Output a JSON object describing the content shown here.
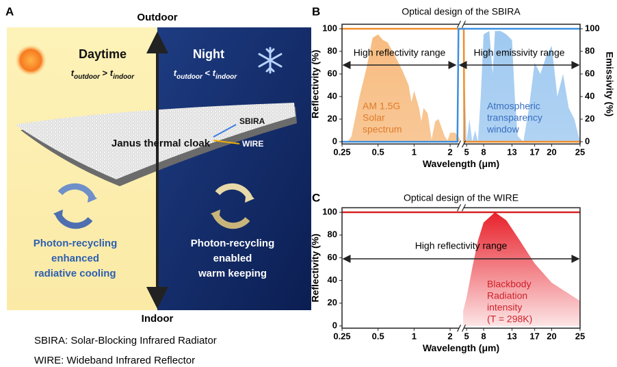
{
  "panel_a": {
    "label": "A",
    "outdoor": "Outdoor",
    "indoor": "Indoor",
    "day_title": "Daytime",
    "night_title": "Night",
    "day_condition": {
      "t1": "t",
      "sub1": "outdoor",
      "op": " > ",
      "t2": "t",
      "sub2": "indoor"
    },
    "night_condition": {
      "t1": "t",
      "sub1": "outdoor",
      "op": " < ",
      "t2": "t",
      "sub2": "indoor"
    },
    "cloak": "Janus thermal cloak",
    "layer_top": "SBIRA",
    "layer_bottom": "WIRE",
    "day_caption": [
      "Photon-recycling",
      "enhanced",
      "radiative cooling"
    ],
    "night_caption": [
      "Photon-recycling",
      "enabled",
      "warm keeping"
    ],
    "footnotes": [
      "SBIRA: Solar-Blocking Infrared Radiator",
      "WIRE: Wideband Infrared Reflector"
    ]
  },
  "chart_data": [
    {
      "type": "line",
      "panel": "B",
      "title": "Optical design of the SBIRA",
      "x_label": "Wavelength (μm)",
      "y_label": "Reflectivity (%)",
      "y2_label": "Emissivity (%)",
      "xscale": [
        "log",
        "linear"
      ],
      "xsegments": [
        [
          0.25,
          2.4
        ],
        [
          4.4,
          25
        ]
      ],
      "xticks": [
        0.25,
        0.5,
        1,
        2,
        5,
        8,
        13,
        17,
        20,
        25
      ],
      "ylim": [
        -2,
        104
      ],
      "yticks": [
        0,
        20,
        40,
        60,
        80,
        100
      ],
      "y2lim": [
        -2,
        104
      ],
      "y2ticks": [
        0,
        20,
        40,
        60,
        80,
        100
      ],
      "series": [
        {
          "style": "area",
          "color": "#f6b06a",
          "x": [
            0.28,
            0.3,
            0.35,
            0.4,
            0.45,
            0.5,
            0.55,
            0.6,
            0.7,
            0.8,
            0.9,
            0.95,
            1.0,
            1.1,
            1.15,
            1.2,
            1.3,
            1.4,
            1.5,
            1.6,
            1.8,
            1.9,
            2.0,
            2.2,
            2.4
          ],
          "values": [
            0,
            5,
            40,
            65,
            92,
            95,
            90,
            88,
            75,
            63,
            50,
            35,
            45,
            30,
            18,
            30,
            25,
            2,
            18,
            20,
            5,
            1,
            8,
            8,
            3
          ]
        },
        {
          "style": "area",
          "color": "#8fc0ee",
          "axis": "y2",
          "x": [
            4.4,
            4.6,
            5,
            5.5,
            6,
            6.5,
            7,
            7.5,
            8,
            9,
            9.6,
            10,
            11,
            12,
            13,
            13.5,
            14,
            15,
            16,
            17,
            18,
            19,
            20,
            21,
            22,
            23,
            24,
            25
          ],
          "values": [
            0,
            60,
            0,
            20,
            0,
            10,
            0,
            40,
            95,
            98,
            60,
            98,
            98,
            95,
            90,
            40,
            5,
            0,
            30,
            70,
            60,
            75,
            85,
            40,
            60,
            30,
            20,
            0
          ]
        },
        {
          "style": "line",
          "color": "#f28c28",
          "x": [
            0.25,
            4.5,
            4.6,
            25
          ],
          "values": [
            100,
            100,
            0,
            0
          ]
        },
        {
          "style": "line",
          "color": "#3b8fe0",
          "axis": "y2",
          "x": [
            0.25,
            2.3,
            2.35,
            25
          ],
          "values": [
            0,
            0,
            100,
            100
          ]
        }
      ],
      "ranges": [
        "High reflectivity range",
        "High emissivity range"
      ],
      "annotations": [
        {
          "lines": [
            "AM 1.5G",
            "Solar",
            "spectrum"
          ],
          "color": "#e07b2a"
        },
        {
          "lines": [
            "Atmospheric",
            "transparency",
            "window"
          ],
          "color": "#3a6fc0"
        }
      ]
    },
    {
      "type": "line",
      "panel": "C",
      "title": "Optical design of the WIRE",
      "x_label": "Wavelength (μm)",
      "y_label": "Reflectivity (%)",
      "xscale": [
        "log",
        "linear"
      ],
      "xsegments": [
        [
          0.25,
          2.4
        ],
        [
          4.4,
          25
        ]
      ],
      "xticks": [
        0.25,
        0.5,
        1,
        2,
        5,
        8,
        13,
        17,
        20,
        25
      ],
      "ylim": [
        -2,
        104
      ],
      "yticks": [
        0,
        20,
        40,
        60,
        80,
        100
      ],
      "series": [
        {
          "style": "area",
          "color": "#e8202a",
          "x": [
            4.4,
            5,
            6,
            7,
            8,
            10,
            12,
            14,
            17,
            20,
            25
          ],
          "values": [
            13,
            25,
            51,
            75,
            91,
            100,
            93,
            78,
            55,
            38,
            22
          ]
        },
        {
          "style": "line",
          "color": "#d62020",
          "x": [
            0.25,
            25
          ],
          "values": [
            100,
            100
          ]
        }
      ],
      "ranges": [
        "High reflectivity range"
      ],
      "annotations": [
        {
          "lines": [
            "Blackbody",
            "Radiation",
            "intensity",
            "(T = 298K)"
          ],
          "color": "#d0202a"
        }
      ]
    }
  ]
}
